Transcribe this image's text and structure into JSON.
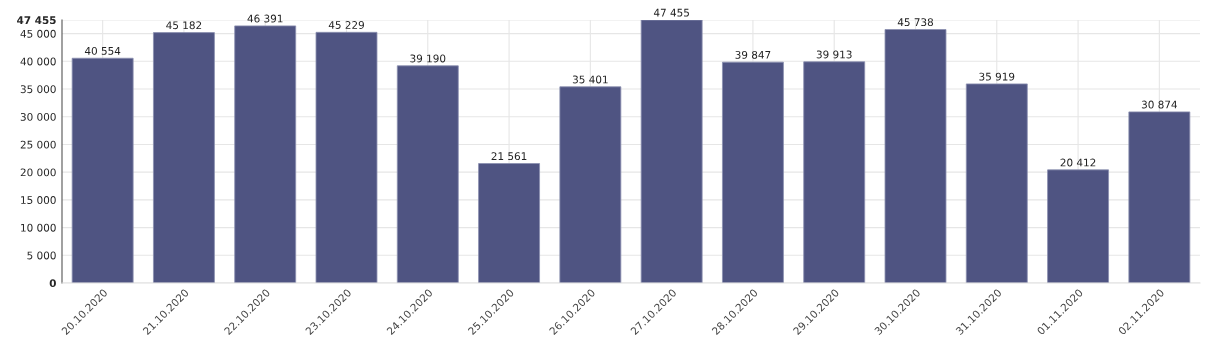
{
  "chart_data": {
    "type": "bar",
    "categories": [
      "20.10.2020",
      "21.10.2020",
      "22.10.2020",
      "23.10.2020",
      "24.10.2020",
      "25.10.2020",
      "26.10.2020",
      "27.10.2020",
      "28.10.2020",
      "29.10.2020",
      "30.10.2020",
      "31.10.2020",
      "01.11.2020",
      "02.11.2020"
    ],
    "values": [
      40554,
      45182,
      46391,
      45229,
      39190,
      21561,
      35401,
      47455,
      39847,
      39913,
      45738,
      35919,
      20412,
      30874
    ],
    "value_labels": [
      "40 554",
      "45 182",
      "46 391",
      "45 229",
      "39 190",
      "21 561",
      "35 401",
      "47 455",
      "39 847",
      "39 913",
      "45 738",
      "35 919",
      "20 412",
      "30 874"
    ],
    "color": "#4f5482",
    "ylim": [
      0,
      47455
    ],
    "yticks": [
      {
        "value": 0,
        "label": "0"
      },
      {
        "value": 5000,
        "label": "5 000"
      },
      {
        "value": 10000,
        "label": "10 000"
      },
      {
        "value": 15000,
        "label": "15 000"
      },
      {
        "value": 20000,
        "label": "20 000"
      },
      {
        "value": 25000,
        "label": "25 000"
      },
      {
        "value": 30000,
        "label": "30 000"
      },
      {
        "value": 35000,
        "label": "35 000"
      },
      {
        "value": 40000,
        "label": "40 000"
      },
      {
        "value": 45000,
        "label": "45 000"
      },
      {
        "value": 47455,
        "label": "47 455"
      }
    ],
    "grid": true
  }
}
